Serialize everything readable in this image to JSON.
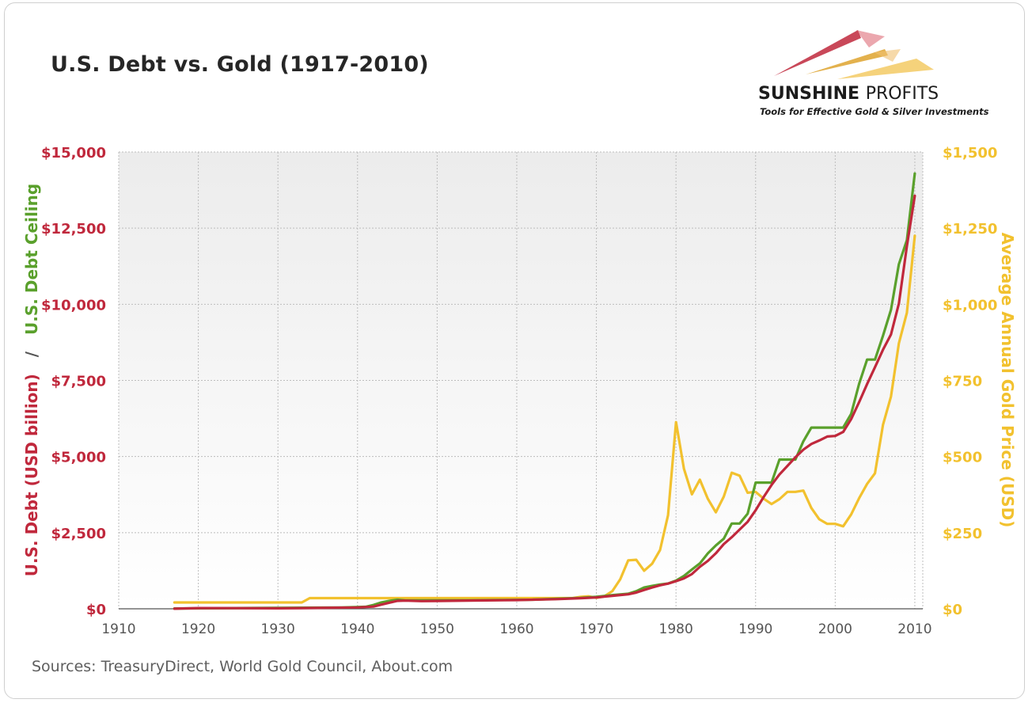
{
  "title": "U.S. Debt vs. Gold (1917-2010)",
  "source": "Sources: TreasuryDirect, World Gold Council, About.com",
  "logo": {
    "name_bold": "SUNSHINE",
    "name_rest": "PROFITS",
    "tagline": "Tools for Effective Gold & Silver Investments",
    "colors": [
      "#c0283c",
      "#e0a93a",
      "#f2c75a"
    ]
  },
  "colors": {
    "debt": "#c0283c",
    "ceiling": "#5aa02c",
    "gold": "#f2c12e"
  },
  "axis_titles": {
    "left_part1": "U.S. Debt (USD billion)",
    "left_sep": "/",
    "left_part2": "U.S. Debt Ceiling",
    "right": "Average Annual Gold Price (USD)"
  },
  "chart_data": {
    "type": "line",
    "title": "U.S. Debt vs. Gold (1917-2010)",
    "xlim": [
      1910,
      2011
    ],
    "x_ticks": [
      1910,
      1920,
      1930,
      1940,
      1950,
      1960,
      1970,
      1980,
      1990,
      2000,
      2010
    ],
    "x_tick_labels": [
      "1910",
      "1920",
      "1930",
      "1940",
      "1950",
      "1960",
      "1970",
      "1980",
      "1990",
      "2000",
      "2010"
    ],
    "y_left": {
      "label": "U.S. Debt (USD billion) / U.S. Debt Ceiling",
      "lim": [
        0,
        15000
      ],
      "ticks": [
        0,
        2500,
        5000,
        7500,
        10000,
        12500,
        15000
      ],
      "tick_labels": [
        "$0",
        "$2,500",
        "$5,000",
        "$7,500",
        "$10,000",
        "$12,500",
        "$15,000"
      ]
    },
    "y_right": {
      "label": "Average Annual Gold Price (USD)",
      "lim": [
        0,
        1500
      ],
      "ticks": [
        0,
        250,
        500,
        750,
        1000,
        1250,
        1500
      ],
      "tick_labels": [
        "$0",
        "$250",
        "$500",
        "$750",
        "$1,000",
        "$1,250",
        "$1,500"
      ]
    },
    "grid": true,
    "series": [
      {
        "name": "U.S. Debt (USD billion)",
        "axis": "left",
        "points": [
          [
            1917,
            3
          ],
          [
            1920,
            24
          ],
          [
            1925,
            21
          ],
          [
            1930,
            16
          ],
          [
            1935,
            29
          ],
          [
            1940,
            43
          ],
          [
            1942,
            72
          ],
          [
            1943,
            137
          ],
          [
            1944,
            201
          ],
          [
            1945,
            259
          ],
          [
            1946,
            269
          ],
          [
            1948,
            252
          ],
          [
            1950,
            257
          ],
          [
            1955,
            274
          ],
          [
            1960,
            286
          ],
          [
            1965,
            317
          ],
          [
            1968,
            348
          ],
          [
            1970,
            371
          ],
          [
            1972,
            427
          ],
          [
            1974,
            475
          ],
          [
            1975,
            533
          ],
          [
            1976,
            620
          ],
          [
            1977,
            699
          ],
          [
            1978,
            772
          ],
          [
            1979,
            827
          ],
          [
            1980,
            908
          ],
          [
            1981,
            998
          ],
          [
            1982,
            1142
          ],
          [
            1983,
            1377
          ],
          [
            1984,
            1572
          ],
          [
            1985,
            1823
          ],
          [
            1986,
            2125
          ],
          [
            1987,
            2350
          ],
          [
            1988,
            2602
          ],
          [
            1989,
            2857
          ],
          [
            1990,
            3233
          ],
          [
            1991,
            3665
          ],
          [
            1992,
            4065
          ],
          [
            1993,
            4411
          ],
          [
            1994,
            4693
          ],
          [
            1995,
            4974
          ],
          [
            1996,
            5225
          ],
          [
            1997,
            5413
          ],
          [
            1998,
            5526
          ],
          [
            1999,
            5656
          ],
          [
            2000,
            5674
          ],
          [
            2001,
            5807
          ],
          [
            2002,
            6228
          ],
          [
            2003,
            6783
          ],
          [
            2004,
            7379
          ],
          [
            2005,
            7933
          ],
          [
            2006,
            8507
          ],
          [
            2007,
            9008
          ],
          [
            2008,
            10025
          ],
          [
            2009,
            11910
          ],
          [
            2010,
            13562
          ]
        ]
      },
      {
        "name": "U.S. Debt Ceiling",
        "axis": "left",
        "points": [
          [
            1917,
            11
          ],
          [
            1938,
            45
          ],
          [
            1941,
            65
          ],
          [
            1942,
            125
          ],
          [
            1943,
            210
          ],
          [
            1944,
            260
          ],
          [
            1945,
            300
          ],
          [
            1946,
            275
          ],
          [
            1954,
            281
          ],
          [
            1958,
            288
          ],
          [
            1962,
            300
          ],
          [
            1965,
            328
          ],
          [
            1968,
            358
          ],
          [
            1970,
            395
          ],
          [
            1972,
            450
          ],
          [
            1974,
            495
          ],
          [
            1975,
            577
          ],
          [
            1976,
            700
          ],
          [
            1977,
            752
          ],
          [
            1978,
            798
          ],
          [
            1979,
            830
          ],
          [
            1980,
            925
          ],
          [
            1981,
            1080
          ],
          [
            1982,
            1290
          ],
          [
            1983,
            1490
          ],
          [
            1984,
            1820
          ],
          [
            1985,
            2079
          ],
          [
            1986,
            2300
          ],
          [
            1987,
            2800
          ],
          [
            1988,
            2800
          ],
          [
            1989,
            3123
          ],
          [
            1990,
            4145
          ],
          [
            1992,
            4145
          ],
          [
            1993,
            4900
          ],
          [
            1995,
            4900
          ],
          [
            1996,
            5500
          ],
          [
            1997,
            5950
          ],
          [
            2001,
            5950
          ],
          [
            2002,
            6400
          ],
          [
            2003,
            7384
          ],
          [
            2004,
            8184
          ],
          [
            2005,
            8184
          ],
          [
            2006,
            8965
          ],
          [
            2007,
            9815
          ],
          [
            2008,
            11315
          ],
          [
            2009,
            12104
          ],
          [
            2010,
            14294
          ]
        ]
      },
      {
        "name": "Average Annual Gold Price (USD)",
        "axis": "right",
        "points": [
          [
            1917,
            20.67
          ],
          [
            1933,
            20.67
          ],
          [
            1934,
            35
          ],
          [
            1967,
            35
          ],
          [
            1968,
            39
          ],
          [
            1969,
            41
          ],
          [
            1970,
            36
          ],
          [
            1971,
            41
          ],
          [
            1972,
            58
          ],
          [
            1973,
            97
          ],
          [
            1974,
            159
          ],
          [
            1975,
            161
          ],
          [
            1976,
            125
          ],
          [
            1977,
            148
          ],
          [
            1978,
            193
          ],
          [
            1979,
            307
          ],
          [
            1980,
            613
          ],
          [
            1981,
            460
          ],
          [
            1982,
            376
          ],
          [
            1983,
            424
          ],
          [
            1984,
            361
          ],
          [
            1985,
            317
          ],
          [
            1986,
            368
          ],
          [
            1987,
            447
          ],
          [
            1988,
            437
          ],
          [
            1989,
            381
          ],
          [
            1990,
            384
          ],
          [
            1991,
            362
          ],
          [
            1992,
            344
          ],
          [
            1993,
            360
          ],
          [
            1994,
            384
          ],
          [
            1995,
            384
          ],
          [
            1996,
            388
          ],
          [
            1997,
            331
          ],
          [
            1998,
            294
          ],
          [
            1999,
            279
          ],
          [
            2000,
            279
          ],
          [
            2001,
            271
          ],
          [
            2002,
            310
          ],
          [
            2003,
            363
          ],
          [
            2004,
            410
          ],
          [
            2005,
            445
          ],
          [
            2006,
            604
          ],
          [
            2007,
            697
          ],
          [
            2008,
            872
          ],
          [
            2009,
            972
          ],
          [
            2010,
            1225
          ]
        ]
      }
    ]
  }
}
